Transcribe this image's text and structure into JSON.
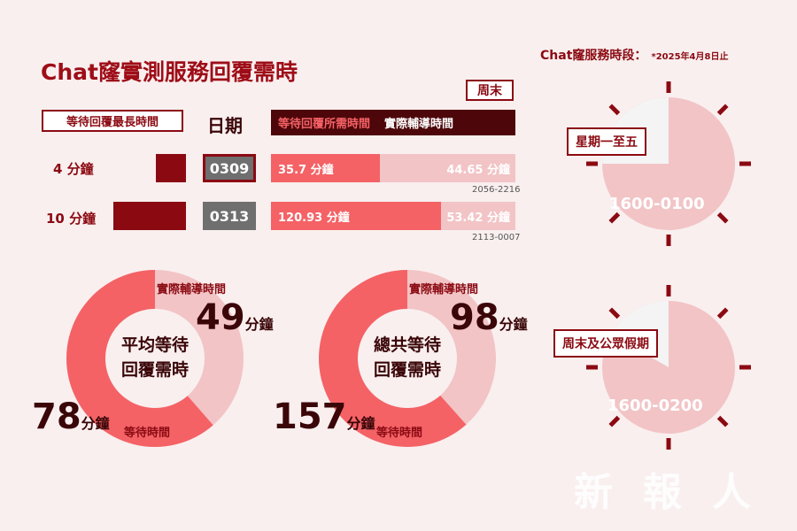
{
  "title": "Chat窿實測服務回覆需時",
  "service": {
    "heading": "Chat窿服務時段：",
    "note": "*2025年4月8日止",
    "weekday": {
      "label": "星期一至五",
      "range": "1600-0100",
      "service_fraction": 0.75
    },
    "weekend": {
      "label": "周末及公眾假期",
      "range": "1600-0200",
      "service_fraction": 0.833
    }
  },
  "headers": {
    "max_wait": "等待回覆最長時間",
    "date": "日期",
    "wait_time": "等待回覆所需時間",
    "actual_time": "實際輔導時間",
    "weekend_tag": "周末"
  },
  "colors": {
    "dark_red": "#8b0a12",
    "wait": "#f46266",
    "actual": "#f2c4c6",
    "bg": "#f9efef"
  },
  "chart_data": [
    {
      "type": "bar",
      "title": "",
      "rows": [
        {
          "max_wait": "4 分鐘",
          "max_wait_minutes": 4,
          "date": "0309",
          "weekend": true,
          "wait_label": "35.7 分鐘",
          "wait_minutes": 35.7,
          "actual_label": "44.65 分鐘",
          "actual_minutes": 44.65,
          "range": "2056-2216"
        },
        {
          "max_wait": "10 分鐘",
          "max_wait_minutes": 10,
          "date": "0313",
          "weekend": false,
          "wait_label": "120.93 分鐘",
          "wait_minutes": 120.93,
          "actual_label": "53.42 分鐘",
          "actual_minutes": 53.42,
          "range": "2113-0007"
        }
      ]
    },
    {
      "type": "pie",
      "title": "平均等待回覆需時",
      "center": [
        "平均等待",
        "回覆需時"
      ],
      "slices": [
        {
          "label": "等待時間",
          "value": 78,
          "color": "#f46266"
        },
        {
          "label": "實際輔導時間",
          "value": 49,
          "color": "#f2c4c6"
        }
      ],
      "unit": "分鐘"
    },
    {
      "type": "pie",
      "title": "總共等待回覆需時",
      "center": [
        "總共等待",
        "回覆需時"
      ],
      "slices": [
        {
          "label": "等待時間",
          "value": 157,
          "color": "#f46266"
        },
        {
          "label": "實際輔導時間",
          "value": 98,
          "color": "#f2c4c6"
        }
      ],
      "unit": "分鐘"
    }
  ],
  "watermark": [
    "新",
    "報",
    "人"
  ]
}
